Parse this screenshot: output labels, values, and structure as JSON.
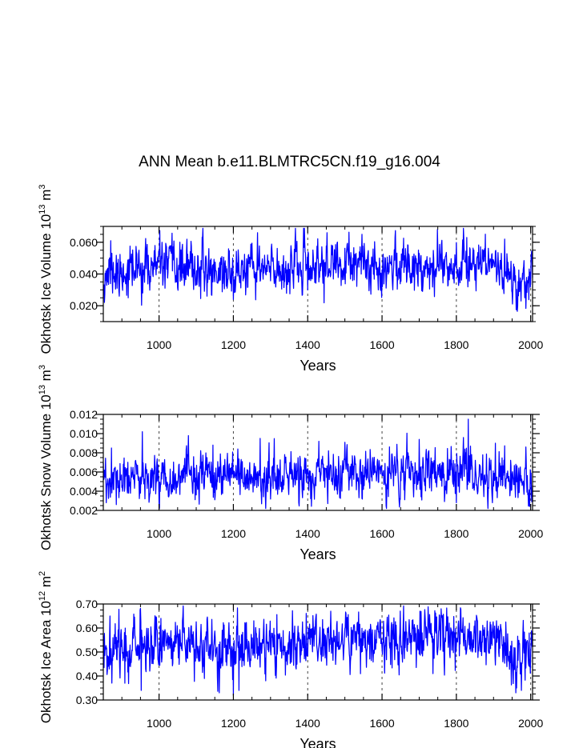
{
  "figure": {
    "title": "ANN Mean b.e11.BLMTRC5CN.f19_g16.004"
  },
  "series_color": "#0000ff",
  "chart_data": [
    {
      "type": "line",
      "title": "",
      "xlabel": "Years",
      "ylabel": "Okhotsk Ice Volume 10",
      "ylabel_exp": "13",
      "ylabel_unit": " m",
      "ylabel_unit_exp": "3",
      "xlim": [
        850,
        2005
      ],
      "ylim": [
        0.01,
        0.07
      ],
      "xticks": [
        1000,
        1200,
        1400,
        1600,
        1800,
        2000
      ],
      "xtick_labels": [
        "1000",
        "1200",
        "1400",
        "1600",
        "1800",
        "2000"
      ],
      "yticks": [
        0.02,
        0.04,
        0.06
      ],
      "ytick_labels": [
        "0.020",
        "0.040",
        "0.060"
      ],
      "vgrid": [
        1000,
        1200,
        1400,
        1600,
        1800,
        2000
      ],
      "x_start": 850,
      "x_step": 1,
      "mean": 0.042,
      "sd": 0.0075,
      "seed": 11,
      "trend": [
        [
          850,
          0.04
        ],
        [
          1000,
          0.045
        ],
        [
          1200,
          0.041
        ],
        [
          1450,
          0.045
        ],
        [
          1750,
          0.046
        ],
        [
          1900,
          0.048
        ],
        [
          1960,
          0.034
        ],
        [
          2005,
          0.038
        ]
      ],
      "spikes": [
        [
          870,
          0.061
        ],
        [
          893,
          0.026
        ],
        [
          917,
          0.025
        ],
        [
          1008,
          0.06
        ],
        [
          1200,
          0.024
        ],
        [
          1265,
          0.066
        ],
        [
          1400,
          0.03
        ],
        [
          1452,
          0.066
        ],
        [
          1635,
          0.063
        ],
        [
          1749,
          0.068
        ],
        [
          1760,
          0.059
        ],
        [
          1828,
          0.063
        ],
        [
          1930,
          0.062
        ],
        [
          1965,
          0.02
        ],
        [
          1974,
          0.023
        ]
      ]
    },
    {
      "type": "line",
      "title": "",
      "xlabel": "Years",
      "ylabel": "Okhotsk Snow Volume 10",
      "ylabel_exp": "13",
      "ylabel_unit": " m",
      "ylabel_unit_exp": "3",
      "xlim": [
        850,
        2005
      ],
      "ylim": [
        0.002,
        0.012
      ],
      "xticks": [
        1000,
        1200,
        1400,
        1600,
        1800,
        2000
      ],
      "xtick_labels": [
        "1000",
        "1200",
        "1400",
        "1600",
        "1800",
        "2000"
      ],
      "yticks": [
        0.002,
        0.004,
        0.006,
        0.008,
        0.01,
        0.012
      ],
      "ytick_labels": [
        "0.002",
        "0.004",
        "0.006",
        "0.008",
        "0.010",
        "0.012"
      ],
      "vgrid": [
        1000,
        1200,
        1400,
        1600,
        1800,
        2000
      ],
      "x_start": 850,
      "x_step": 1,
      "mean": 0.0055,
      "sd": 0.00115,
      "seed": 23,
      "trend": [
        [
          850,
          0.0048
        ],
        [
          1000,
          0.0056
        ],
        [
          1200,
          0.0053
        ],
        [
          1400,
          0.0055
        ],
        [
          1600,
          0.0058
        ],
        [
          1800,
          0.0059
        ],
        [
          1950,
          0.0054
        ],
        [
          2005,
          0.0046
        ]
      ],
      "spikes": [
        [
          858,
          0.0028
        ],
        [
          872,
          0.0085
        ],
        [
          885,
          0.0026
        ],
        [
          955,
          0.0102
        ],
        [
          1145,
          0.0088
        ],
        [
          1272,
          0.0095
        ],
        [
          1430,
          0.0092
        ],
        [
          1700,
          0.0094
        ],
        [
          1800,
          0.0028
        ],
        [
          1832,
          0.0115
        ],
        [
          1838,
          0.0087
        ],
        [
          1905,
          0.009
        ],
        [
          2003,
          0.0029
        ]
      ]
    },
    {
      "type": "line",
      "title": "",
      "xlabel": "Years",
      "ylabel": "Okhotsk Ice Area 10",
      "ylabel_exp": "12",
      "ylabel_unit": " m",
      "ylabel_unit_exp": "2",
      "xlim": [
        850,
        2005
      ],
      "ylim": [
        0.3,
        0.7
      ],
      "xticks": [
        1000,
        1200,
        1400,
        1600,
        1800,
        2000
      ],
      "xtick_labels": [
        "1000",
        "1200",
        "1400",
        "1600",
        "1800",
        "2000"
      ],
      "yticks": [
        0.3,
        0.4,
        0.5,
        0.6,
        0.7
      ],
      "ytick_labels": [
        "0.30",
        "0.40",
        "0.50",
        "0.60",
        "0.70"
      ],
      "vgrid": [
        1000,
        1200,
        1400,
        1600,
        1800,
        2000
      ],
      "x_start": 850,
      "x_step": 1,
      "mean": 0.53,
      "sd": 0.055,
      "seed": 37,
      "trend": [
        [
          850,
          0.51
        ],
        [
          1000,
          0.55
        ],
        [
          1200,
          0.51
        ],
        [
          1450,
          0.55
        ],
        [
          1750,
          0.56
        ],
        [
          1900,
          0.57
        ],
        [
          1960,
          0.46
        ],
        [
          2005,
          0.5
        ]
      ],
      "spikes": [
        [
          868,
          0.65
        ],
        [
          908,
          0.37
        ],
        [
          952,
          0.34
        ],
        [
          1005,
          0.64
        ],
        [
          1162,
          0.33
        ],
        [
          1200,
          0.32
        ],
        [
          1215,
          0.34
        ],
        [
          1462,
          0.67
        ],
        [
          1702,
          0.67
        ],
        [
          1759,
          0.68
        ],
        [
          1960,
          0.33
        ],
        [
          1975,
          0.34
        ]
      ]
    }
  ]
}
